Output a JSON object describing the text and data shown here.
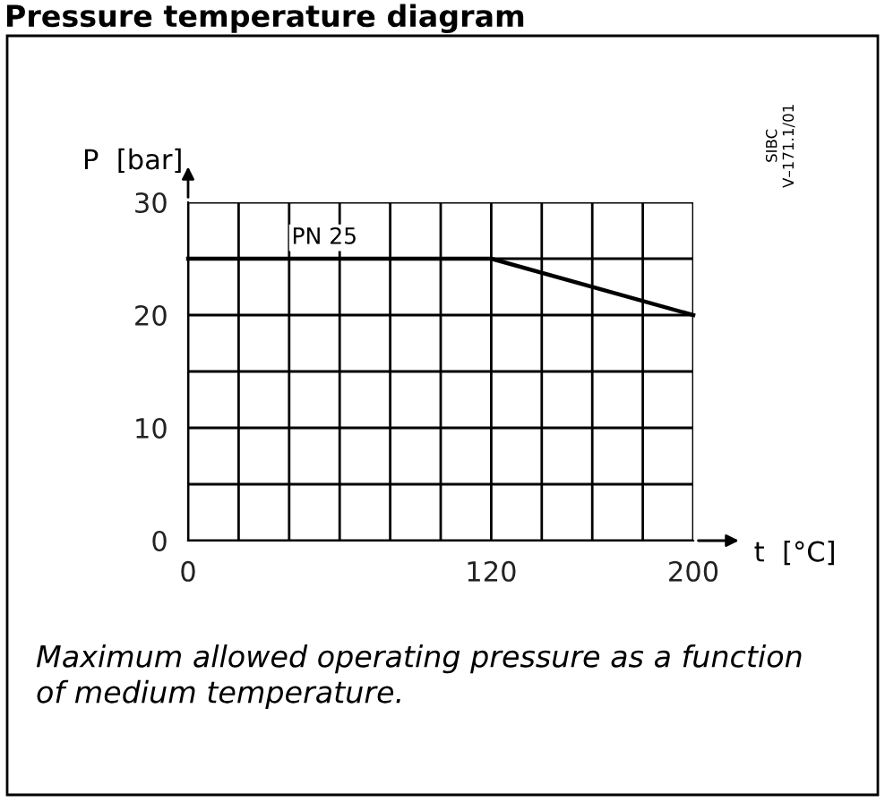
{
  "chart_data": {
    "type": "line",
    "title": "Pressure temperature diagram",
    "xlabel": "t  [°C]",
    "ylabel": "P  [bar]",
    "x": [
      0,
      120,
      200
    ],
    "series": [
      {
        "name": "PN 25",
        "color": "#000000",
        "values": [
          25,
          25,
          20
        ]
      }
    ],
    "xlim": [
      0,
      200
    ],
    "ylim": [
      0,
      30
    ],
    "xticks": [
      0,
      {
        "value": 20,
        "label": null
      },
      {
        "value": 40,
        "label": null
      },
      {
        "value": 60,
        "label": null
      },
      {
        "value": 80,
        "label": null
      },
      {
        "value": 100,
        "label": null
      },
      120,
      {
        "value": 140,
        "label": null
      },
      {
        "value": 160,
        "label": null
      },
      {
        "value": 180,
        "label": null
      },
      200
    ],
    "yticks": [
      0,
      {
        "value": 5,
        "label": null
      },
      10,
      {
        "value": 15,
        "label": null
      },
      20,
      {
        "value": 25,
        "label": null
      },
      30
    ],
    "grid": true,
    "legend": false,
    "marker": "none",
    "line_style": "solid",
    "annotations": [
      "SIBC\nV–171.1/01",
      "Maximum allowed operating pressure as a function of medium temperature."
    ]
  }
}
